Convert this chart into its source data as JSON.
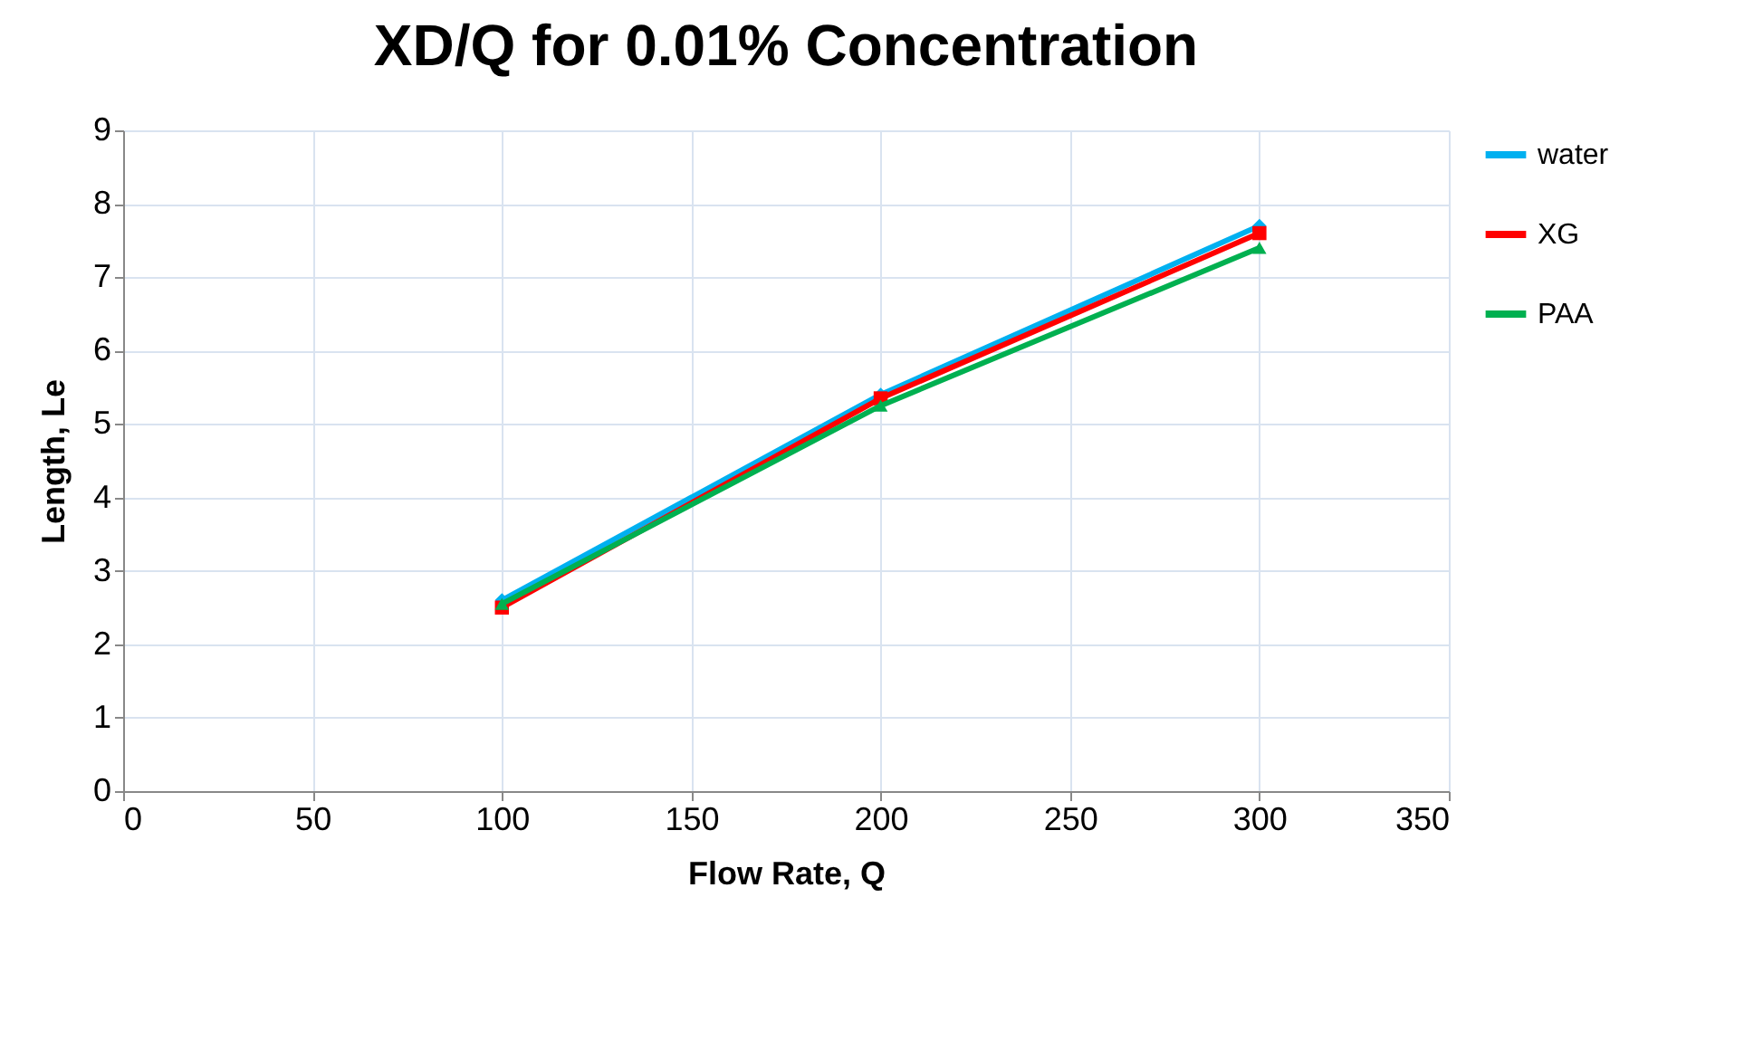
{
  "chart_data": {
    "type": "line",
    "title": "XD/Q for 0.01% Concentration",
    "xlabel": "Flow Rate, Q",
    "ylabel": "Length, Le",
    "x": [
      100,
      200,
      300
    ],
    "series": [
      {
        "name": "water",
        "color": "#00b0f0",
        "values": [
          2.6,
          5.4,
          7.7
        ],
        "marker": "diamond"
      },
      {
        "name": "XG",
        "color": "#ff0000",
        "values": [
          2.5,
          5.35,
          7.6
        ],
        "marker": "square"
      },
      {
        "name": "PAA",
        "color": "#00b050",
        "values": [
          2.55,
          5.25,
          7.4
        ],
        "marker": "triangle"
      }
    ],
    "xlim": [
      0,
      350
    ],
    "xticks": [
      0,
      50,
      100,
      150,
      200,
      250,
      300,
      350
    ],
    "ylim": [
      0,
      9
    ],
    "yticks": [
      0,
      1,
      2,
      3,
      4,
      5,
      6,
      7,
      8,
      9
    ],
    "grid": true,
    "legend": "right",
    "line_style": "solid"
  }
}
